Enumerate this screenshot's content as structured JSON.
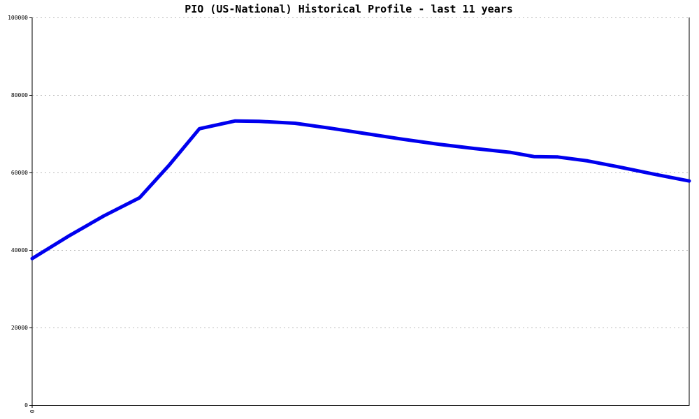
{
  "chart_data": {
    "type": "line",
    "title": "PIO (US-National) Historical Profile - last 11 years",
    "xlabel": "",
    "ylabel": "",
    "ylim": [
      0,
      100000
    ],
    "yticks": [
      "0",
      "20000",
      "40000",
      "60000",
      "80000",
      "100000"
    ],
    "xticks": [
      "0"
    ],
    "xlim": [
      0,
      11
    ],
    "grid": true,
    "legend": "none",
    "series": [
      {
        "color": "#0000ee",
        "x": [
          0,
          0.6,
          1.2,
          1.8,
          2.3,
          2.8,
          3.4,
          3.8,
          4.4,
          5.0,
          5.6,
          6.2,
          6.8,
          7.4,
          8.0,
          8.4,
          8.8,
          9.3,
          9.8,
          10.4,
          11
        ],
        "y": [
          37800,
          43500,
          48800,
          53500,
          62000,
          71300,
          73300,
          73200,
          72700,
          71400,
          70000,
          68600,
          67300,
          66200,
          65200,
          64100,
          64000,
          63000,
          61500,
          59600,
          57800
        ]
      }
    ]
  }
}
